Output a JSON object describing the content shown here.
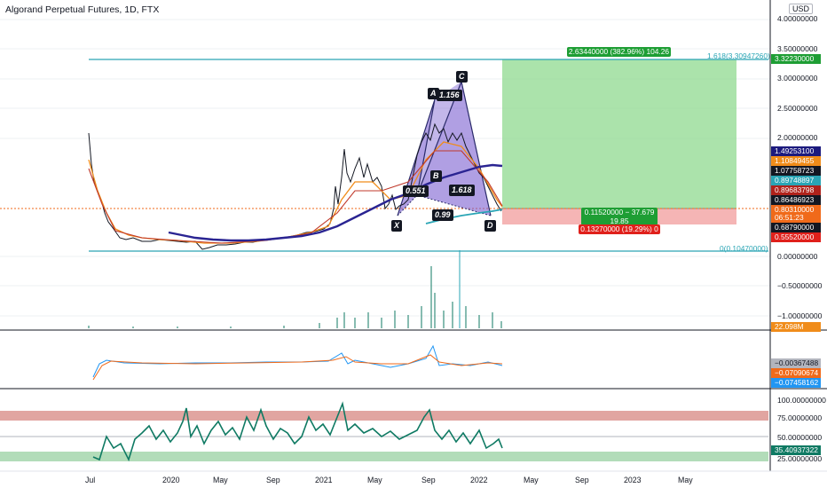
{
  "header": {
    "title": "Algorand Perpetual Futures, 1D, FTX",
    "currency": "USD"
  },
  "price_axis": {
    "labels": [
      "4.00000000",
      "3.50000000",
      "3.00000000",
      "2.50000000",
      "2.00000000",
      "0.00000000",
      "−0.50000000",
      "−1.00000000"
    ]
  },
  "price_badges": [
    {
      "text": "3.32230000",
      "bg": "#1e9e34",
      "fg": "#ffffff"
    },
    {
      "text": "1.49253100",
      "bg": "#1c1a7e",
      "fg": "#ffffff"
    },
    {
      "text": "1.10849455",
      "bg": "#f08c1a",
      "fg": "#ffffff"
    },
    {
      "text": "1.07758723",
      "bg": "#131722",
      "fg": "#ffffff"
    },
    {
      "text": "0.89748897",
      "bg": "#2aa5b5",
      "fg": "#ffffff"
    },
    {
      "text": "0.89683798",
      "bg": "#b0221b",
      "fg": "#ffffff"
    },
    {
      "text": "0.86486923",
      "bg": "#131722",
      "fg": "#ffffff"
    },
    {
      "text": "0.80310000",
      "bg": "#f06a1a",
      "fg": "#ffffff"
    },
    {
      "text": "06:51:23",
      "bg": "#f06a1a",
      "fg": "#ffffff"
    },
    {
      "text": "0.68790000",
      "bg": "#131722",
      "fg": "#ffffff"
    },
    {
      "text": "0.55520000",
      "bg": "#e0201b",
      "fg": "#ffffff"
    }
  ],
  "volume": {
    "value": "22.098M",
    "bg": "#f08c1a"
  },
  "macd": {
    "values": [
      {
        "text": "−0.00367488",
        "bg": "#b2b5be",
        "fg": "#131722"
      },
      {
        "text": "−0.07090674",
        "bg": "#f06a1a",
        "fg": "#ffffff"
      },
      {
        "text": "−0.07458162",
        "bg": "#2196f3",
        "fg": "#ffffff"
      }
    ]
  },
  "rsi": {
    "labels": [
      "100.00000000",
      "75.00000000",
      "50.00000000",
      "25.00000000"
    ],
    "value": "35.40937322",
    "value_bg": "#0f7a63"
  },
  "time_axis": [
    "Jul",
    "2020",
    "May",
    "Sep",
    "2021",
    "May",
    "Sep",
    "2022",
    "May",
    "Sep",
    "2023",
    "May"
  ],
  "pattern": {
    "points": {
      "X": "X",
      "A": "A",
      "B": "B",
      "C": "C",
      "D": "D"
    },
    "ratios": {
      "ab": "0.551",
      "ac": "1.156",
      "cd": "1.618",
      "bd": "0.99"
    }
  },
  "position": {
    "target_label": "2.63440000 (382.96%) 104.26",
    "entry_label_line1": "0.11520000 − 37.679",
    "entry_label_line2": "19.85",
    "stop_label": "0.13270000 (19.29%) 0"
  },
  "fib": {
    "top_label": "1.618(3.30947260)",
    "bottom_label": "0(0.10470000)"
  },
  "colors": {
    "fib_line": "#2aa5b5",
    "pattern_fill": "#7b5fd0",
    "profit_zone": "#8fd98f",
    "loss_zone": "#f3a3a3",
    "rsi_line": "#0f7a63",
    "rsi_upper_band": "#d98f8a",
    "rsi_lower_band": "#9fd3a7"
  }
}
